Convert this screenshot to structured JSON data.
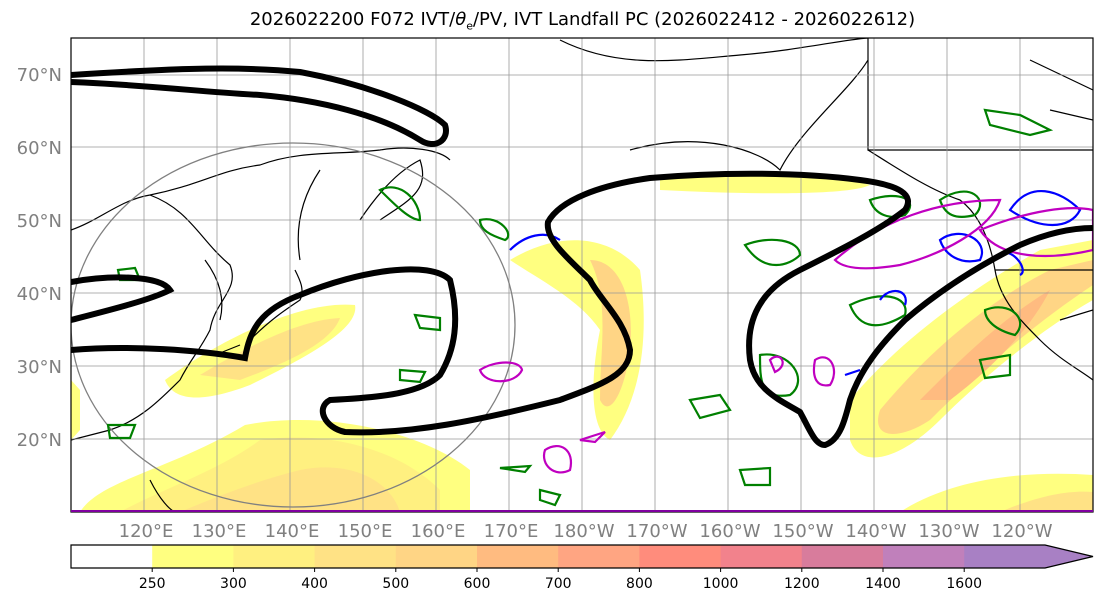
{
  "title": {
    "prefix": "2026022200 F072 IVT/",
    "theta": "θ",
    "theta_sub": "e",
    "suffix": "/PV, IVT Landfall PC (2026022412 - 2026022612)"
  },
  "map": {
    "lat_labels": [
      "70°N",
      "60°N",
      "50°N",
      "40°N",
      "30°N",
      "20°N"
    ],
    "lon_labels": [
      "120°E",
      "130°E",
      "140°E",
      "150°E",
      "160°E",
      "170°E",
      "180°W",
      "170°W",
      "160°W",
      "150°W",
      "140°W",
      "130°W",
      "120°W"
    ],
    "extent": {
      "lon_min": 110,
      "lon_max": 250,
      "lat_min": 10,
      "lat_max": 75
    }
  },
  "colorbar": {
    "ticks": [
      "250",
      "300",
      "400",
      "500",
      "600",
      "700",
      "800",
      "1000",
      "1200",
      "1400",
      "1600"
    ],
    "colors": [
      "#ffffff",
      "#ffff80",
      "#fff080",
      "#ffe285",
      "#ffd585",
      "#ffbb80",
      "#ffa582",
      "#ff8c7c",
      "#f2828c",
      "#d87c9c",
      "#c080bb",
      "#a880c4"
    ]
  },
  "colors": {
    "theta_e": "#008000",
    "pv_pos": "#0000ff",
    "pv_neg": "#c000c0",
    "ivt_contour": "#000000"
  }
}
